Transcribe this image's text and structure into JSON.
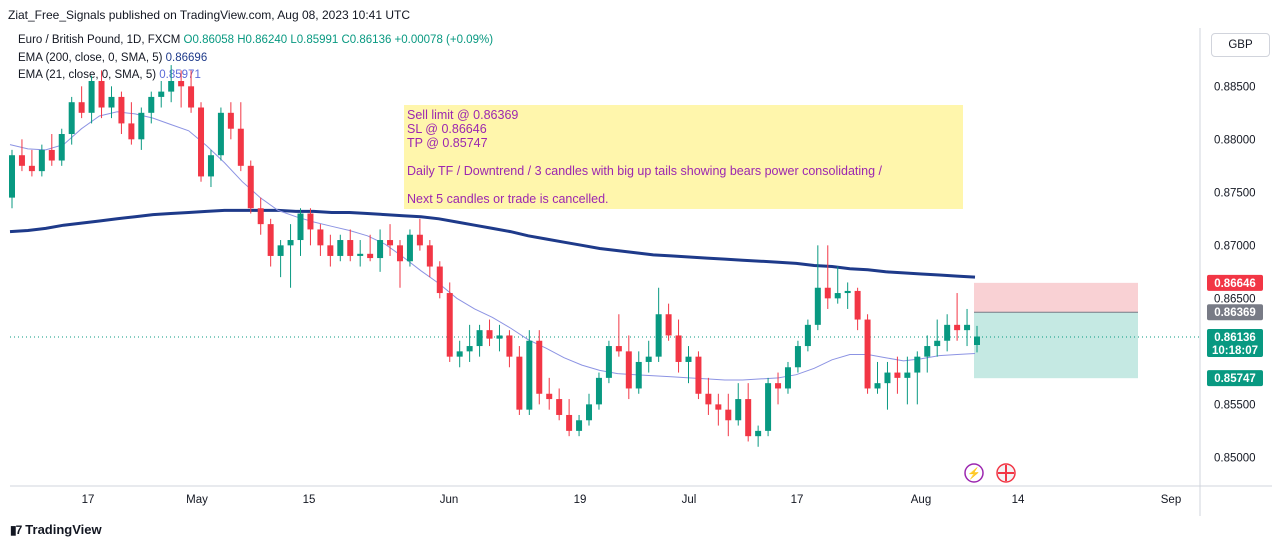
{
  "header": {
    "publish_note": "Ziat_Free_Signals published on TradingView.com, Aug 08, 2023 10:41 UTC",
    "symbol_line": "Euro / British Pound, 1D, FXCM",
    "ohlc": "O0.86058 H0.86240 L0.85991 C0.86136 +0.00078 (+0.09%)",
    "ema200_label": "EMA (200, close, 0, SMA, 5)",
    "ema200_value": "0.86696",
    "ema21_label": "EMA (21, close, 0, SMA, 5)",
    "ema21_value": "0.85971",
    "currency": "GBP"
  },
  "annotation": {
    "lines": [
      "Sell limit @ 0.86369",
      "SL @ 0.86646",
      "TP @ 0.85747",
      "",
      "Daily TF  / Downtrend / 3 candles with big up tails showing bears power consolidating /",
      "",
      "Next 5 candles or trade is cancelled."
    ]
  },
  "price_tags": {
    "stop_loss": "0.86646",
    "entry": "0.86369",
    "current": "0.86136",
    "countdown": "10:18:07",
    "take_profit": "0.85747"
  },
  "colors": {
    "up": "#089981",
    "down": "#f23645",
    "ema200": "#1e3a8a",
    "ema21": "#8c93e3",
    "annotation_bg": "#fff59d",
    "annotation_text": "#9c27b0",
    "sl_zone": "#f7c6c9",
    "tp_zone": "#b7e4dc"
  },
  "footer": {
    "brand": "TradingView"
  },
  "chart_data": {
    "type": "candlestick",
    "y_ticks": [
      "0.88500",
      "0.88000",
      "0.87500",
      "0.87000",
      "0.86500",
      "0.86000",
      "0.85500",
      "0.85000"
    ],
    "ylim": [
      0.8473,
      0.8905
    ],
    "x_ticks": [
      "17",
      "May",
      "15",
      "Jun",
      "19",
      "Jul",
      "17",
      "Aug",
      "14",
      "Sep"
    ],
    "candles": [
      [
        0.8745,
        0.879,
        0.8735,
        0.8785
      ],
      [
        0.8785,
        0.88,
        0.877,
        0.8775
      ],
      [
        0.8775,
        0.879,
        0.8765,
        0.877
      ],
      [
        0.877,
        0.8795,
        0.8765,
        0.879
      ],
      [
        0.879,
        0.8805,
        0.8775,
        0.878
      ],
      [
        0.878,
        0.881,
        0.8775,
        0.8805
      ],
      [
        0.8805,
        0.884,
        0.8795,
        0.8835
      ],
      [
        0.8835,
        0.885,
        0.882,
        0.8825
      ],
      [
        0.8825,
        0.886,
        0.8815,
        0.8855
      ],
      [
        0.8855,
        0.8865,
        0.882,
        0.883
      ],
      [
        0.883,
        0.885,
        0.882,
        0.884
      ],
      [
        0.884,
        0.8845,
        0.8805,
        0.8815
      ],
      [
        0.8815,
        0.8835,
        0.8795,
        0.88
      ],
      [
        0.88,
        0.883,
        0.879,
        0.8825
      ],
      [
        0.8825,
        0.8845,
        0.8815,
        0.884
      ],
      [
        0.884,
        0.8855,
        0.883,
        0.8845
      ],
      [
        0.8845,
        0.887,
        0.8835,
        0.8855
      ],
      [
        0.8855,
        0.8865,
        0.883,
        0.885
      ],
      [
        0.885,
        0.8865,
        0.8825,
        0.883
      ],
      [
        0.883,
        0.8835,
        0.876,
        0.8765
      ],
      [
        0.8765,
        0.879,
        0.8755,
        0.8785
      ],
      [
        0.8785,
        0.883,
        0.878,
        0.8825
      ],
      [
        0.8825,
        0.8835,
        0.88,
        0.881
      ],
      [
        0.881,
        0.8835,
        0.877,
        0.8775
      ],
      [
        0.8775,
        0.878,
        0.873,
        0.8735
      ],
      [
        0.8735,
        0.8745,
        0.871,
        0.872
      ],
      [
        0.872,
        0.8725,
        0.868,
        0.869
      ],
      [
        0.869,
        0.8705,
        0.867,
        0.87
      ],
      [
        0.87,
        0.872,
        0.866,
        0.8705
      ],
      [
        0.8705,
        0.8735,
        0.869,
        0.873
      ],
      [
        0.873,
        0.8735,
        0.87,
        0.8715
      ],
      [
        0.8715,
        0.872,
        0.869,
        0.87
      ],
      [
        0.87,
        0.871,
        0.868,
        0.869
      ],
      [
        0.869,
        0.871,
        0.8685,
        0.8705
      ],
      [
        0.8705,
        0.8715,
        0.8685,
        0.869
      ],
      [
        0.869,
        0.8705,
        0.868,
        0.8692
      ],
      [
        0.8692,
        0.871,
        0.8685,
        0.8688
      ],
      [
        0.8688,
        0.8715,
        0.8675,
        0.8705
      ],
      [
        0.8705,
        0.872,
        0.869,
        0.87
      ],
      [
        0.87,
        0.8705,
        0.866,
        0.8685
      ],
      [
        0.8685,
        0.8715,
        0.868,
        0.871
      ],
      [
        0.871,
        0.8725,
        0.8695,
        0.87
      ],
      [
        0.87,
        0.8705,
        0.867,
        0.868
      ],
      [
        0.868,
        0.8685,
        0.865,
        0.8655
      ],
      [
        0.8655,
        0.8665,
        0.859,
        0.8595
      ],
      [
        0.8595,
        0.861,
        0.8585,
        0.86
      ],
      [
        0.86,
        0.8625,
        0.859,
        0.8605
      ],
      [
        0.8605,
        0.8625,
        0.8595,
        0.862
      ],
      [
        0.862,
        0.863,
        0.8605,
        0.8612
      ],
      [
        0.8612,
        0.8625,
        0.86,
        0.8615
      ],
      [
        0.8615,
        0.862,
        0.8585,
        0.8595
      ],
      [
        0.8595,
        0.8605,
        0.854,
        0.8545
      ],
      [
        0.8545,
        0.862,
        0.854,
        0.861
      ],
      [
        0.861,
        0.862,
        0.855,
        0.856
      ],
      [
        0.856,
        0.8575,
        0.8545,
        0.8555
      ],
      [
        0.8555,
        0.8565,
        0.8535,
        0.854
      ],
      [
        0.854,
        0.8555,
        0.852,
        0.8525
      ],
      [
        0.8525,
        0.854,
        0.852,
        0.8535
      ],
      [
        0.8535,
        0.856,
        0.853,
        0.855
      ],
      [
        0.855,
        0.858,
        0.8545,
        0.8575
      ],
      [
        0.8575,
        0.861,
        0.857,
        0.8605
      ],
      [
        0.8605,
        0.8635,
        0.8595,
        0.86
      ],
      [
        0.86,
        0.8615,
        0.8555,
        0.8565
      ],
      [
        0.8565,
        0.86,
        0.856,
        0.859
      ],
      [
        0.859,
        0.861,
        0.858,
        0.8595
      ],
      [
        0.8595,
        0.866,
        0.859,
        0.8635
      ],
      [
        0.8635,
        0.8645,
        0.861,
        0.8615
      ],
      [
        0.8615,
        0.863,
        0.858,
        0.859
      ],
      [
        0.859,
        0.8605,
        0.857,
        0.8595
      ],
      [
        0.8595,
        0.86,
        0.8555,
        0.856
      ],
      [
        0.856,
        0.8575,
        0.854,
        0.855
      ],
      [
        0.855,
        0.856,
        0.853,
        0.8545
      ],
      [
        0.8545,
        0.856,
        0.852,
        0.8535
      ],
      [
        0.8535,
        0.857,
        0.853,
        0.8555
      ],
      [
        0.8555,
        0.857,
        0.8515,
        0.852
      ],
      [
        0.852,
        0.853,
        0.851,
        0.8525
      ],
      [
        0.8525,
        0.8575,
        0.852,
        0.857
      ],
      [
        0.857,
        0.858,
        0.855,
        0.8565
      ],
      [
        0.8565,
        0.859,
        0.856,
        0.8585
      ],
      [
        0.8585,
        0.861,
        0.858,
        0.8605
      ],
      [
        0.8605,
        0.863,
        0.86,
        0.8625
      ],
      [
        0.8625,
        0.87,
        0.862,
        0.866
      ],
      [
        0.866,
        0.87,
        0.864,
        0.865
      ],
      [
        0.865,
        0.868,
        0.8645,
        0.8655
      ],
      [
        0.8655,
        0.8665,
        0.864,
        0.8657
      ],
      [
        0.8657,
        0.866,
        0.862,
        0.863
      ],
      [
        0.863,
        0.8635,
        0.856,
        0.8565
      ],
      [
        0.8565,
        0.859,
        0.856,
        0.857
      ],
      [
        0.857,
        0.859,
        0.8545,
        0.858
      ],
      [
        0.858,
        0.8595,
        0.856,
        0.8575
      ],
      [
        0.8575,
        0.8595,
        0.855,
        0.858
      ],
      [
        0.858,
        0.86,
        0.855,
        0.8595
      ],
      [
        0.8595,
        0.8615,
        0.858,
        0.8605
      ],
      [
        0.8605,
        0.863,
        0.8595,
        0.861
      ],
      [
        0.861,
        0.8635,
        0.86,
        0.8625
      ],
      [
        0.8625,
        0.8655,
        0.861,
        0.862
      ],
      [
        0.862,
        0.864,
        0.8605,
        0.8625
      ],
      [
        0.8606,
        0.8624,
        0.8599,
        0.8614
      ]
    ],
    "ema200": [
      0.8713,
      0.8714,
      0.8716,
      0.8719,
      0.8721,
      0.8723,
      0.8725,
      0.8727,
      0.8729,
      0.873,
      0.8731,
      0.8732,
      0.8733,
      0.8733,
      0.8733,
      0.8733,
      0.8732,
      0.8732,
      0.8731,
      0.8731,
      0.873,
      0.8729,
      0.8728,
      0.8727,
      0.8725,
      0.8722,
      0.8719,
      0.8716,
      0.8713,
      0.8709,
      0.8706,
      0.8703,
      0.87,
      0.8697,
      0.8695,
      0.8693,
      0.8691,
      0.869,
      0.8689,
      0.8688,
      0.8687,
      0.8686,
      0.8685,
      0.8684,
      0.8683,
      0.8681,
      0.868,
      0.8678,
      0.8677,
      0.8675,
      0.8674,
      0.8673,
      0.8672,
      0.8671,
      0.867
    ],
    "ema21": [
      0.8795,
      0.8791,
      0.879,
      0.8795,
      0.881,
      0.8822,
      0.8826,
      0.8824,
      0.882,
      0.8814,
      0.8808,
      0.8794,
      0.8778,
      0.876,
      0.8745,
      0.8733,
      0.8727,
      0.8722,
      0.8718,
      0.8714,
      0.8709,
      0.8701,
      0.8689,
      0.8676,
      0.8664,
      0.865,
      0.864,
      0.8632,
      0.8622,
      0.8611,
      0.8603,
      0.8594,
      0.8587,
      0.8582,
      0.8579,
      0.8578,
      0.8577,
      0.8576,
      0.8575,
      0.8574,
      0.8573,
      0.8573,
      0.8574,
      0.8575,
      0.8578,
      0.8584,
      0.8592,
      0.8597,
      0.8597,
      0.8594,
      0.8591,
      0.8593,
      0.8596,
      0.8597,
      0.8598
    ]
  }
}
